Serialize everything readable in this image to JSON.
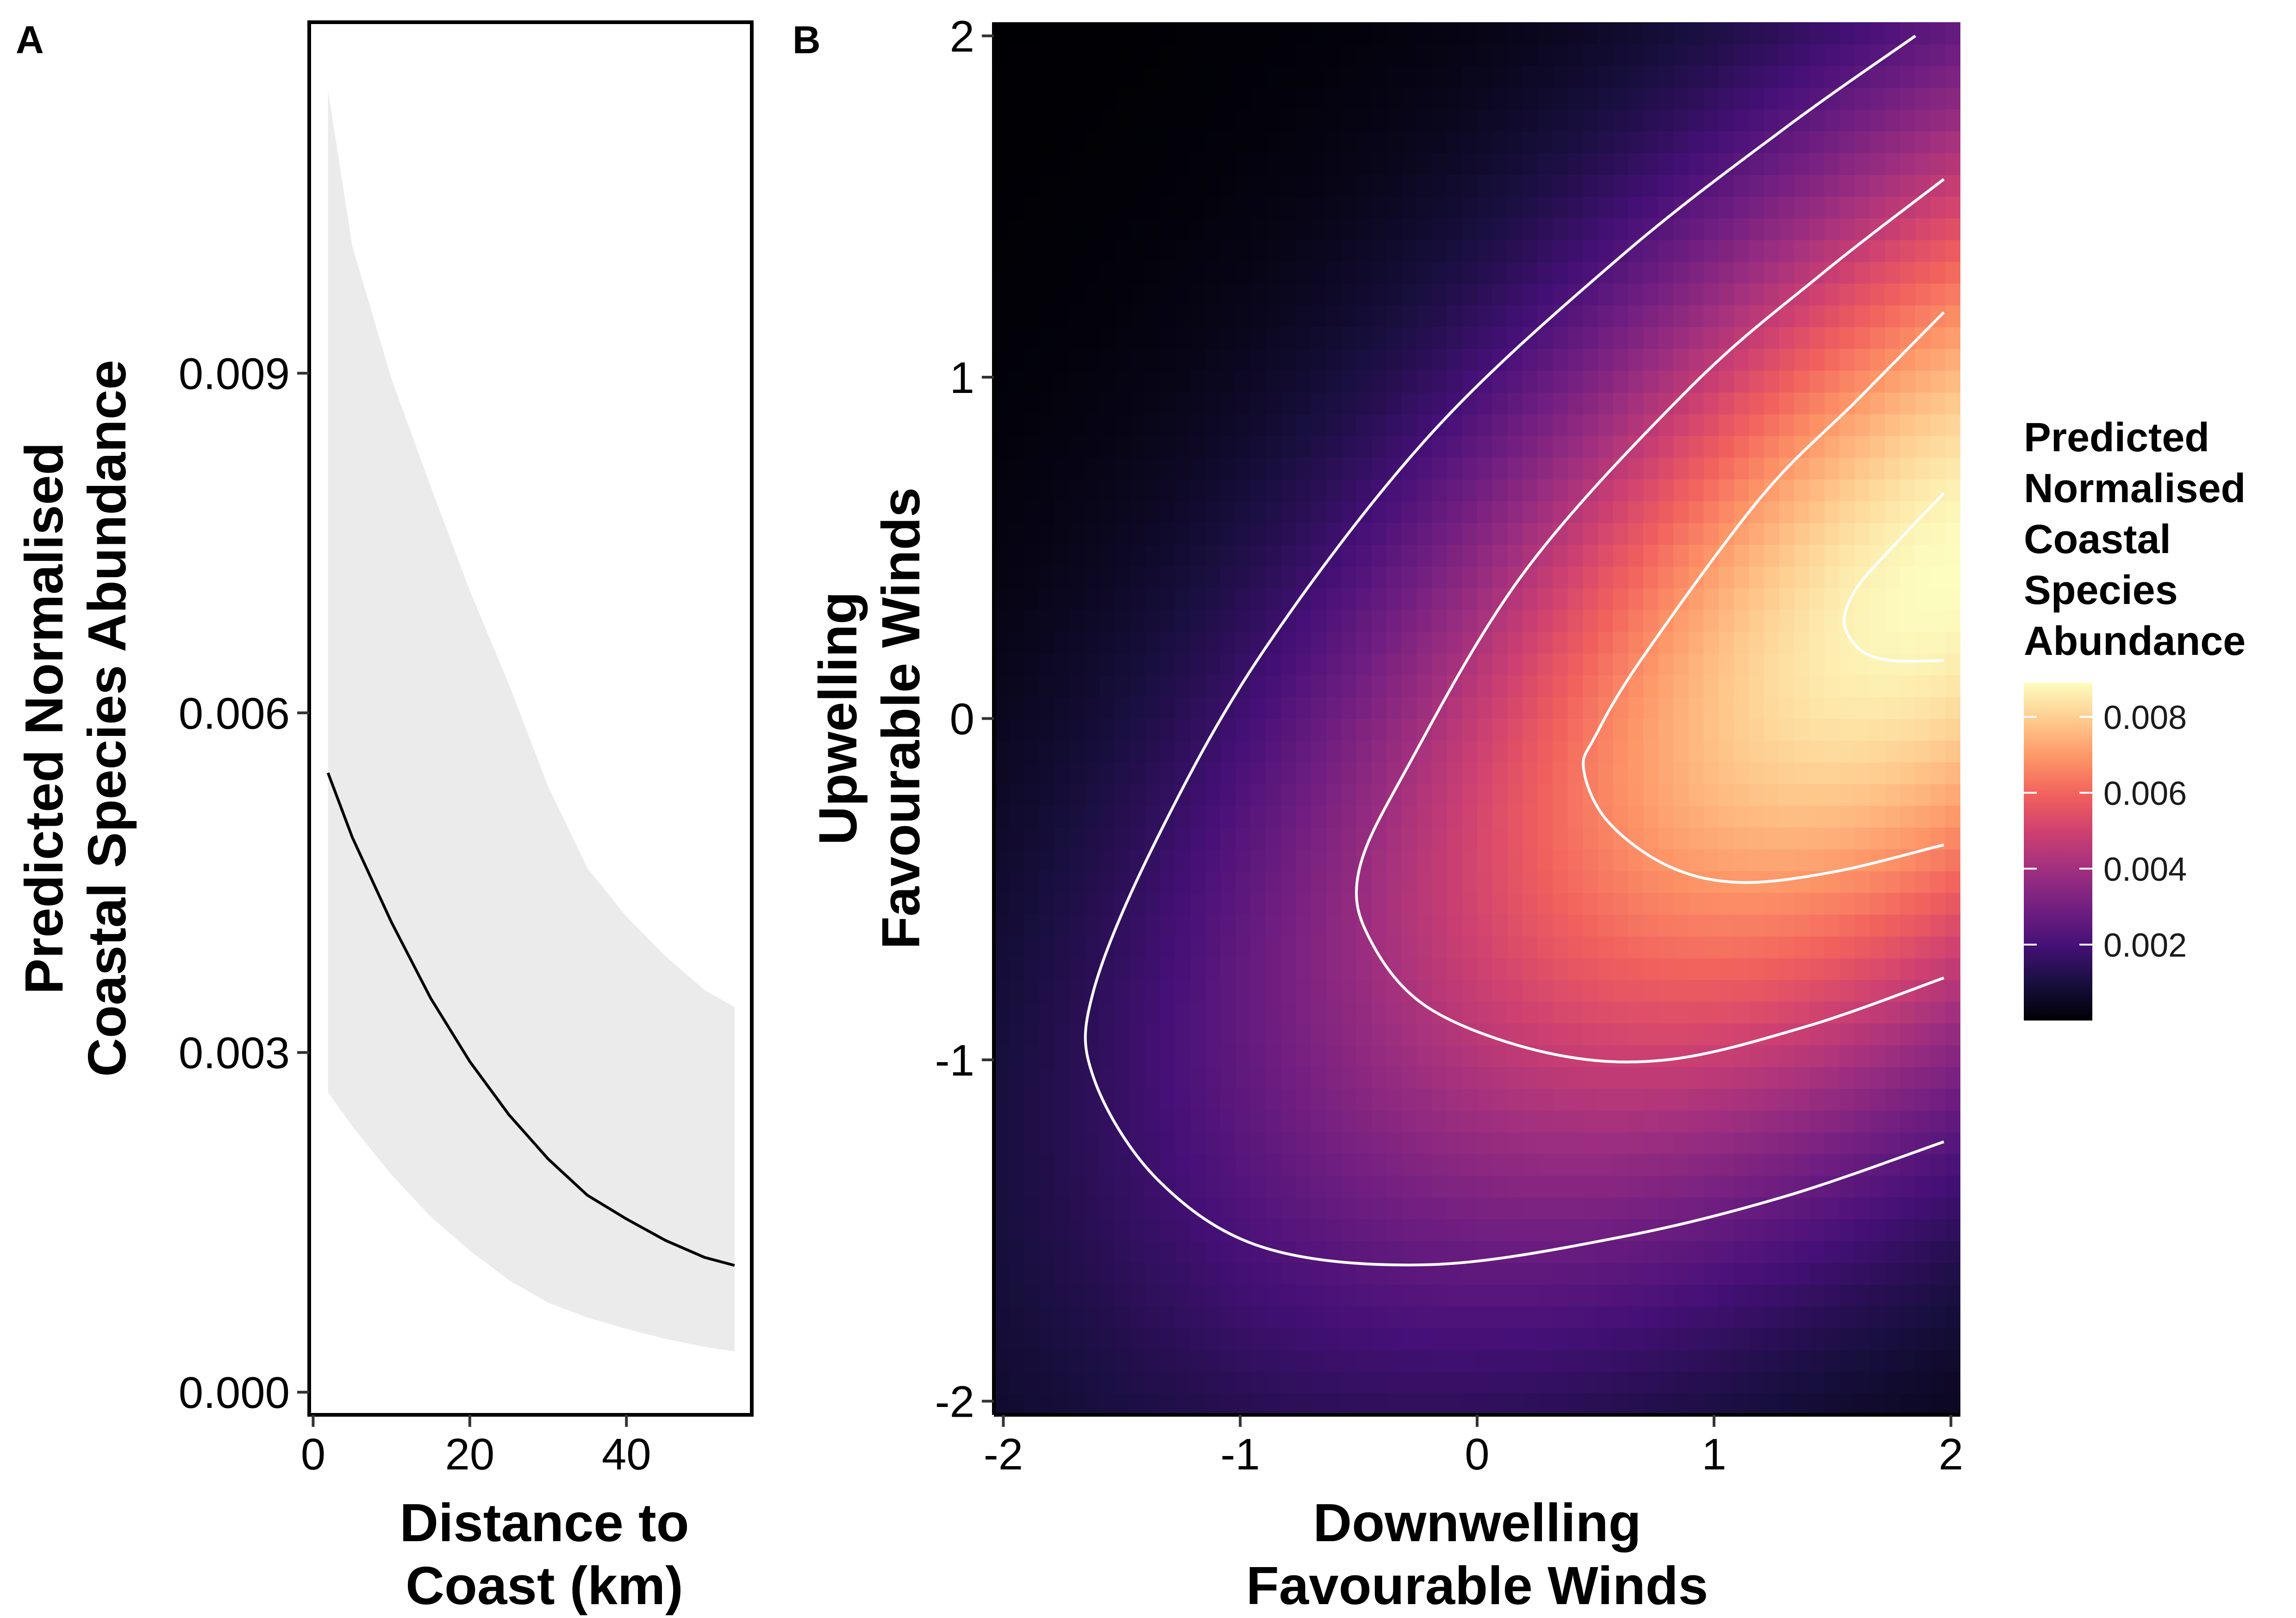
{
  "panels": [
    {
      "letter": "A",
      "chart_data": {
        "type": "line",
        "title": "",
        "xlabel_lines": [
          "Distance to",
          "Coast (km)"
        ],
        "ylabel_lines": [
          "Predicted Normalised",
          "Coastal Species Abundance"
        ],
        "xlim": [
          -0.5,
          56
        ],
        "ylim": [
          -0.0002,
          0.0121
        ],
        "xticks": [
          0,
          20,
          40
        ],
        "xtick_labels": [
          "0",
          "20",
          "40"
        ],
        "yticks": [
          0.0,
          0.003,
          0.006,
          0.009
        ],
        "ytick_labels": [
          "0.000",
          "0.003",
          "0.006",
          "0.009"
        ],
        "grid": false,
        "series": [
          {
            "type": "line",
            "color": "#000000",
            "x": [
              1.9,
              5,
              10,
              15,
              20,
              25,
              30,
              35,
              40,
              45,
              50,
              53.8
            ],
            "y": [
              0.00547,
              0.0049,
              0.00415,
              0.00348,
              0.00292,
              0.00245,
              0.00206,
              0.00174,
              0.00153,
              0.00134,
              0.00119,
              0.00112
            ]
          },
          {
            "type": "ribbon",
            "color": "#ebebeb",
            "x": [
              1.9,
              5,
              10,
              15,
              20,
              25,
              30,
              35,
              40,
              45,
              50,
              53.8
            ],
            "lower": [
              0.00265,
              0.00235,
              0.00192,
              0.00155,
              0.00125,
              0.00099,
              0.00079,
              0.00066,
              0.00056,
              0.00047,
              0.0004,
              0.00036
            ],
            "upper": [
              0.0115,
              0.01012,
              0.00895,
              0.008,
              0.00708,
              0.00625,
              0.00535,
              0.00463,
              0.0042,
              0.00385,
              0.00355,
              0.0034
            ]
          }
        ]
      }
    },
    {
      "letter": "B",
      "chart_data": {
        "type": "heatmap",
        "title": "",
        "xlabel_lines": [
          "Downwelling",
          "Favourable Winds"
        ],
        "ylabel_lines": [
          "Upwelling",
          "Favourable Winds"
        ],
        "xlim": [
          -2.04,
          2.04
        ],
        "ylim": [
          -2.04,
          2.04
        ],
        "xticks": [
          -2,
          -1,
          0,
          1,
          2
        ],
        "xtick_labels": [
          "-2",
          "-1",
          "0",
          "1",
          "2"
        ],
        "yticks": [
          -2,
          -1,
          0,
          1,
          2
        ],
        "ytick_labels": [
          "-2",
          "-1",
          "0",
          "1",
          "2"
        ],
        "grid": false,
        "colormap": "magma",
        "color_stops": [
          "#000004",
          "#180f3e",
          "#451077",
          "#721f81",
          "#9f2f7f",
          "#cd4071",
          "#f1605d",
          "#fd9567",
          "#feca8d",
          "#fcfdbf"
        ],
        "value_range": [
          0.0,
          0.0089
        ],
        "peak": {
          "x": 2.0,
          "y": 0.42,
          "value": 0.0089
        },
        "contour_color": "#ffffff",
        "contour_levels": [
          0.002,
          0.004,
          0.006,
          0.008
        ],
        "contours": [
          {
            "level": 0.002,
            "x": [
              1.85,
              1.3,
              0.6,
              -0.2,
              -0.9,
              -1.35,
              -1.62,
              -1.62,
              -1.35,
              -0.9,
              -0.2,
              0.6,
              1.3,
              1.97
            ],
            "y": [
              2.0,
              1.73,
              1.35,
              0.83,
              0.2,
              -0.35,
              -0.8,
              -1.05,
              -1.35,
              -1.55,
              -1.6,
              -1.52,
              -1.4,
              -1.24
            ]
          },
          {
            "level": 0.004,
            "x": [
              1.97,
              1.45,
              0.9,
              0.2,
              -0.3,
              -0.5,
              -0.45,
              -0.2,
              0.3,
              0.8,
              1.4,
              1.97
            ],
            "y": [
              1.58,
              1.3,
              0.97,
              0.43,
              -0.15,
              -0.45,
              -0.65,
              -0.85,
              -0.98,
              -1.0,
              -0.9,
              -0.76
            ]
          },
          {
            "level": 0.006,
            "x": [
              1.97,
              1.6,
              1.2,
              0.7,
              0.5,
              0.45,
              0.55,
              0.8,
              1.1,
              1.5,
              1.97
            ],
            "y": [
              1.19,
              0.93,
              0.65,
              0.18,
              -0.05,
              -0.15,
              -0.3,
              -0.43,
              -0.48,
              -0.45,
              -0.37
            ]
          },
          {
            "level": 0.008,
            "x": [
              1.97,
              1.75,
              1.6,
              1.55,
              1.62,
              1.75,
              1.97
            ],
            "y": [
              0.66,
              0.5,
              0.38,
              0.28,
              0.2,
              0.17,
              0.17
            ]
          }
        ],
        "legend": {
          "title_lines": [
            "Predicted",
            "Normalised",
            "Coastal",
            "Species",
            "Abundance"
          ],
          "placement": "right",
          "ticks": [
            0.002,
            0.004,
            0.006,
            0.008
          ],
          "tick_labels": [
            "0.002",
            "0.004",
            "0.006",
            "0.008"
          ]
        }
      }
    }
  ]
}
